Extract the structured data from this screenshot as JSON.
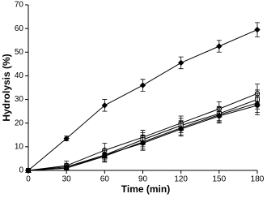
{
  "chart_data": {
    "type": "line",
    "x_label": "Time (min)",
    "y_label": "Hydrolysis (%)",
    "x": [
      0,
      30,
      60,
      90,
      120,
      150,
      180
    ],
    "xlim": [
      0,
      180
    ],
    "xticks": [
      0,
      30,
      60,
      90,
      120,
      150,
      180
    ],
    "ylim": [
      0,
      70
    ],
    "yticks": [
      0,
      10,
      20,
      30,
      40,
      50,
      60,
      70
    ],
    "grid": false,
    "series": [
      {
        "color": "#000000",
        "marker": "diamond",
        "values": [
          0,
          13.5,
          27.5,
          36,
          45.5,
          52.5,
          59.5
        ],
        "errors": [
          0,
          1,
          2.5,
          2.5,
          2.5,
          2.5,
          3
        ]
      },
      {
        "color": "#000000",
        "marker": "open-circle",
        "values": [
          0,
          2,
          8.5,
          14,
          20,
          26,
          32.5
        ],
        "errors": [
          0,
          2,
          3,
          3,
          3,
          3,
          4
        ]
      },
      {
        "color": "#000000",
        "marker": "open-square",
        "values": [
          0,
          1.5,
          6.5,
          13,
          19,
          24,
          30
        ],
        "errors": [
          0,
          1.5,
          2.5,
          3,
          3,
          3,
          4
        ]
      },
      {
        "color": "#000000",
        "marker": "triangle",
        "values": [
          0,
          1,
          6,
          12,
          18,
          23.5,
          28.5
        ],
        "errors": [
          0,
          1,
          2.5,
          3,
          3,
          3,
          4
        ]
      },
      {
        "color": "#000000",
        "marker": "circle",
        "values": [
          0,
          1,
          6.5,
          11.5,
          17.5,
          23,
          27.5
        ],
        "errors": [
          0,
          1,
          2,
          3,
          3,
          3,
          4
        ]
      }
    ]
  }
}
